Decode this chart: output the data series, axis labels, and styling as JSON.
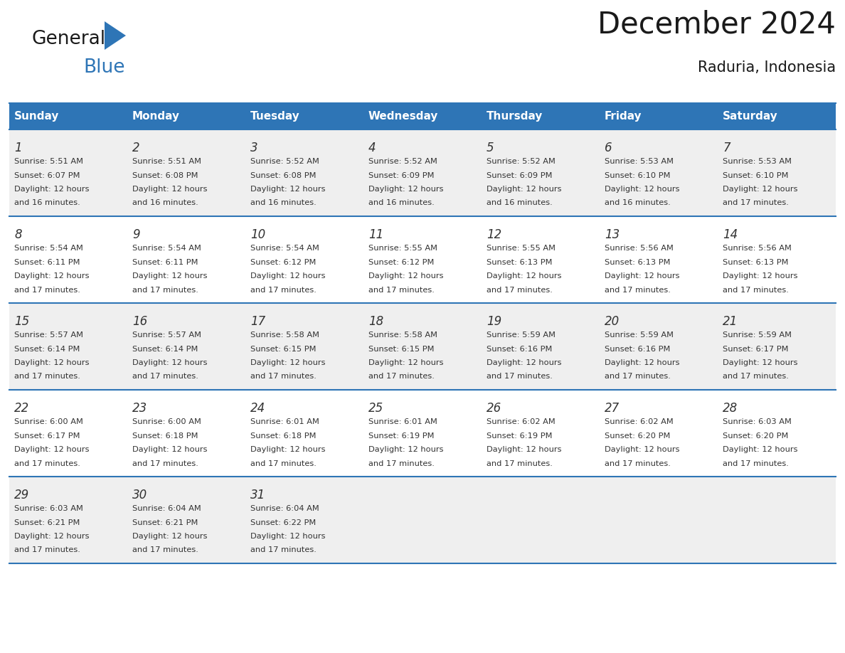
{
  "title": "December 2024",
  "subtitle": "Raduria, Indonesia",
  "header_bg": "#2E75B6",
  "header_text_color": "#FFFFFF",
  "cell_bg_odd": "#EFEFEF",
  "cell_bg_even": "#FFFFFF",
  "border_color": "#2E75B6",
  "days_of_week": [
    "Sunday",
    "Monday",
    "Tuesday",
    "Wednesday",
    "Thursday",
    "Friday",
    "Saturday"
  ],
  "weeks": [
    [
      {
        "day": 1,
        "sunrise": "5:51 AM",
        "sunset": "6:07 PM",
        "daylight": "12 hours and 16 minutes."
      },
      {
        "day": 2,
        "sunrise": "5:51 AM",
        "sunset": "6:08 PM",
        "daylight": "12 hours and 16 minutes."
      },
      {
        "day": 3,
        "sunrise": "5:52 AM",
        "sunset": "6:08 PM",
        "daylight": "12 hours and 16 minutes."
      },
      {
        "day": 4,
        "sunrise": "5:52 AM",
        "sunset": "6:09 PM",
        "daylight": "12 hours and 16 minutes."
      },
      {
        "day": 5,
        "sunrise": "5:52 AM",
        "sunset": "6:09 PM",
        "daylight": "12 hours and 16 minutes."
      },
      {
        "day": 6,
        "sunrise": "5:53 AM",
        "sunset": "6:10 PM",
        "daylight": "12 hours and 16 minutes."
      },
      {
        "day": 7,
        "sunrise": "5:53 AM",
        "sunset": "6:10 PM",
        "daylight": "12 hours and 17 minutes."
      }
    ],
    [
      {
        "day": 8,
        "sunrise": "5:54 AM",
        "sunset": "6:11 PM",
        "daylight": "12 hours and 17 minutes."
      },
      {
        "day": 9,
        "sunrise": "5:54 AM",
        "sunset": "6:11 PM",
        "daylight": "12 hours and 17 minutes."
      },
      {
        "day": 10,
        "sunrise": "5:54 AM",
        "sunset": "6:12 PM",
        "daylight": "12 hours and 17 minutes."
      },
      {
        "day": 11,
        "sunrise": "5:55 AM",
        "sunset": "6:12 PM",
        "daylight": "12 hours and 17 minutes."
      },
      {
        "day": 12,
        "sunrise": "5:55 AM",
        "sunset": "6:13 PM",
        "daylight": "12 hours and 17 minutes."
      },
      {
        "day": 13,
        "sunrise": "5:56 AM",
        "sunset": "6:13 PM",
        "daylight": "12 hours and 17 minutes."
      },
      {
        "day": 14,
        "sunrise": "5:56 AM",
        "sunset": "6:13 PM",
        "daylight": "12 hours and 17 minutes."
      }
    ],
    [
      {
        "day": 15,
        "sunrise": "5:57 AM",
        "sunset": "6:14 PM",
        "daylight": "12 hours and 17 minutes."
      },
      {
        "day": 16,
        "sunrise": "5:57 AM",
        "sunset": "6:14 PM",
        "daylight": "12 hours and 17 minutes."
      },
      {
        "day": 17,
        "sunrise": "5:58 AM",
        "sunset": "6:15 PM",
        "daylight": "12 hours and 17 minutes."
      },
      {
        "day": 18,
        "sunrise": "5:58 AM",
        "sunset": "6:15 PM",
        "daylight": "12 hours and 17 minutes."
      },
      {
        "day": 19,
        "sunrise": "5:59 AM",
        "sunset": "6:16 PM",
        "daylight": "12 hours and 17 minutes."
      },
      {
        "day": 20,
        "sunrise": "5:59 AM",
        "sunset": "6:16 PM",
        "daylight": "12 hours and 17 minutes."
      },
      {
        "day": 21,
        "sunrise": "5:59 AM",
        "sunset": "6:17 PM",
        "daylight": "12 hours and 17 minutes."
      }
    ],
    [
      {
        "day": 22,
        "sunrise": "6:00 AM",
        "sunset": "6:17 PM",
        "daylight": "12 hours and 17 minutes."
      },
      {
        "day": 23,
        "sunrise": "6:00 AM",
        "sunset": "6:18 PM",
        "daylight": "12 hours and 17 minutes."
      },
      {
        "day": 24,
        "sunrise": "6:01 AM",
        "sunset": "6:18 PM",
        "daylight": "12 hours and 17 minutes."
      },
      {
        "day": 25,
        "sunrise": "6:01 AM",
        "sunset": "6:19 PM",
        "daylight": "12 hours and 17 minutes."
      },
      {
        "day": 26,
        "sunrise": "6:02 AM",
        "sunset": "6:19 PM",
        "daylight": "12 hours and 17 minutes."
      },
      {
        "day": 27,
        "sunrise": "6:02 AM",
        "sunset": "6:20 PM",
        "daylight": "12 hours and 17 minutes."
      },
      {
        "day": 28,
        "sunrise": "6:03 AM",
        "sunset": "6:20 PM",
        "daylight": "12 hours and 17 minutes."
      }
    ],
    [
      {
        "day": 29,
        "sunrise": "6:03 AM",
        "sunset": "6:21 PM",
        "daylight": "12 hours and 17 minutes."
      },
      {
        "day": 30,
        "sunrise": "6:04 AM",
        "sunset": "6:21 PM",
        "daylight": "12 hours and 17 minutes."
      },
      {
        "day": 31,
        "sunrise": "6:04 AM",
        "sunset": "6:22 PM",
        "daylight": "12 hours and 17 minutes."
      },
      null,
      null,
      null,
      null
    ]
  ],
  "logo_general_color": "#1a1a1a",
  "logo_blue_color": "#2E75B6",
  "fig_width": 11.88,
  "fig_height": 9.18,
  "dpi": 100
}
